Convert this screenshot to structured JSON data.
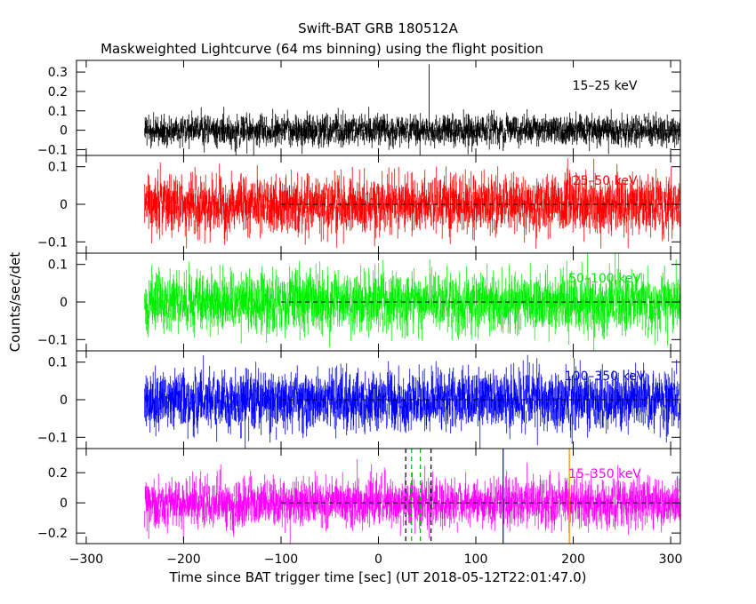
{
  "chart_data": {
    "type": "line",
    "title": "Swift-BAT GRB 180512A",
    "subtitle": "Maskweighted Lightcurve (64 ms binning) using the flight position",
    "xlabel": "Time since BAT trigger time [sec] (UT 2018-05-12T22:01:47.0)",
    "ylabel": "Counts/sec/det",
    "xlim": [
      -310,
      310
    ],
    "x_ticks": [
      -300,
      -200,
      -100,
      0,
      100,
      200,
      300
    ],
    "data_start": -240,
    "data_end": 310,
    "binning_sec": 0.064,
    "zero_line_start": -100,
    "panels": [
      {
        "band": "15–25 keV",
        "color": "#000000",
        "ylim": [
          -0.13,
          0.36
        ],
        "yticks": [
          -0.1,
          0,
          0.1,
          0.2,
          0.3
        ],
        "tick_labels": [
          "−0.1",
          "0",
          "0.1",
          "0.2",
          "0.3"
        ],
        "noise_sigma": 0.035,
        "spike": {
          "x": 52,
          "y": 0.34
        }
      },
      {
        "band": "25–50 keV",
        "color": "#ff0000",
        "ylim": [
          -0.13,
          0.13
        ],
        "yticks": [
          -0.1,
          0,
          0.1
        ],
        "tick_labels": [
          "−0.1",
          "0",
          "0.1"
        ],
        "noise_sigma": 0.035
      },
      {
        "band": "50–100 keV",
        "color": "#00ee00",
        "ylim": [
          -0.13,
          0.13
        ],
        "yticks": [
          -0.1,
          0,
          0.1
        ],
        "tick_labels": [
          "−0.1",
          "0",
          "0.1"
        ],
        "noise_sigma": 0.035
      },
      {
        "band": "100–350 keV",
        "color": "#0000ff",
        "ylim": [
          -0.13,
          0.13
        ],
        "yticks": [
          -0.1,
          0,
          0.1
        ],
        "tick_labels": [
          "−0.1",
          "0",
          "0.1"
        ],
        "noise_sigma": 0.035
      },
      {
        "band": "15–350 keV",
        "color": "#ff00ff",
        "ylim": [
          -0.27,
          0.36
        ],
        "yticks": [
          -0.2,
          0,
          0.2
        ],
        "tick_labels": [
          "−0.2",
          "0",
          "0.2"
        ],
        "noise_sigma": 0.07
      }
    ],
    "markers": [
      {
        "x": 28,
        "color": "#000000",
        "style": "dashed"
      },
      {
        "x": 54,
        "color": "#000000",
        "style": "dashed"
      },
      {
        "x": 34,
        "color": "#00bb00",
        "style": "dashed"
      },
      {
        "x": 43,
        "color": "#00bb00",
        "style": "dashed"
      },
      {
        "x": 128,
        "color": "#0000ff",
        "style": "solid"
      },
      {
        "x": 196,
        "color": "#ff8800",
        "style": "solid"
      }
    ]
  }
}
